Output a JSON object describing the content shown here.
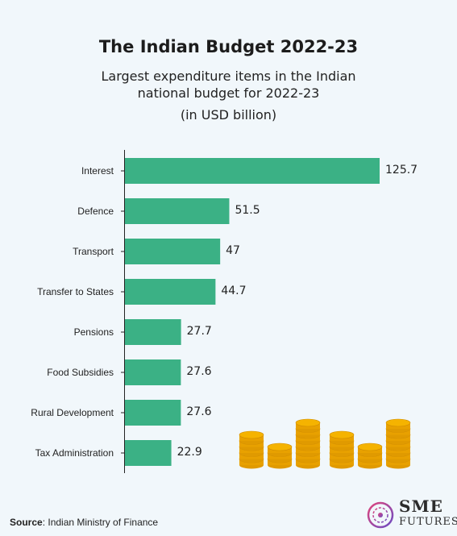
{
  "header": {
    "title": "The Indian Budget 2022-23",
    "subtitle_line1": "Largest expenditure items in the Indian",
    "subtitle_line2": "national budget for 2022-23",
    "units": "(in USD billion)"
  },
  "chart_data": {
    "type": "bar",
    "orientation": "horizontal",
    "title": "The Indian Budget 2022-23",
    "subtitle": "Largest expenditure items in the Indian national budget for 2022-23",
    "units": "(in USD billion)",
    "categories": [
      "Interest",
      "Defence",
      "Transport",
      "Transfer to States",
      "Pensions",
      "Food Subsidies",
      "Rural Development",
      "Tax Administration"
    ],
    "values": [
      125.7,
      51.5,
      47,
      44.7,
      27.7,
      27.6,
      27.6,
      22.9
    ],
    "value_labels": [
      "125.7",
      "51.5",
      "47",
      "44.7",
      "27.7",
      "27.6",
      "27.6",
      "22.9"
    ],
    "bar_color": "#3bb185",
    "xlim": [
      0,
      125.7
    ],
    "grid": false,
    "legend": "none"
  },
  "decoration": {
    "coin_stacks": [
      5,
      3,
      7,
      5,
      3,
      7
    ],
    "coin_color": "#f5b300"
  },
  "footer": {
    "source_label": "Source",
    "source_text": ": Indian Ministry of Finance",
    "logo_line1": "SME",
    "logo_line2": "FUTURES",
    "logo_icon": "brain-circuit-icon"
  }
}
